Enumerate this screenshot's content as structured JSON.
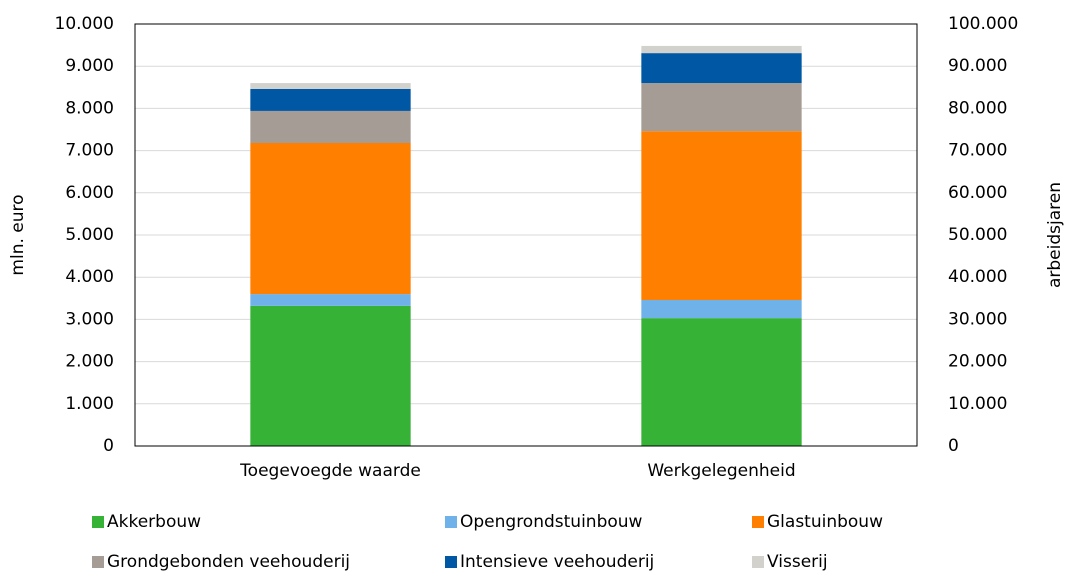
{
  "chart_data": {
    "type": "stacked-bar",
    "categories": [
      "Toegevoegde waarde",
      "Werkgelegenheid"
    ],
    "bar_axis": [
      "y",
      "y2"
    ],
    "ylabel": "mln. euro",
    "y2label": "arbeidsjaren",
    "ylim": [
      0,
      10000
    ],
    "yticks": [
      0,
      {
        "value": 1000,
        "label": "1.000"
      },
      {
        "value": 2000,
        "label": "2.000"
      },
      {
        "value": 3000,
        "label": "3.000"
      },
      {
        "value": 4000,
        "label": "4.000"
      },
      {
        "value": 5000,
        "label": "5.000"
      },
      {
        "value": 6000,
        "label": "6.000"
      },
      {
        "value": 7000,
        "label": "7.000"
      },
      {
        "value": 8000,
        "label": "8.000"
      },
      {
        "value": 9000,
        "label": "9.000"
      },
      {
        "value": 10000,
        "label": "10.000"
      }
    ],
    "y2lim": [
      0,
      100000
    ],
    "y2ticks": [
      0,
      {
        "value": 10000,
        "label": "10.000"
      },
      {
        "value": 20000,
        "label": "20.000"
      },
      {
        "value": 30000,
        "label": "30.000"
      },
      {
        "value": 40000,
        "label": "40.000"
      },
      {
        "value": 50000,
        "label": "50.000"
      },
      {
        "value": 60000,
        "label": "60.000"
      },
      {
        "value": 70000,
        "label": "70.000"
      },
      {
        "value": 80000,
        "label": "80.000"
      },
      {
        "value": 90000,
        "label": "90.000"
      },
      {
        "value": 100000,
        "label": "100.000"
      }
    ],
    "grid": true,
    "legend": "bottom",
    "series": [
      {
        "name": "Akkerbouw",
        "color": "#36b336",
        "values": [
          3320,
          30300
        ]
      },
      {
        "name": "Opengrondstuinbouw",
        "color": "#6fb2ea",
        "values": [
          280,
          4300
        ]
      },
      {
        "name": "Glastuinbouw",
        "color": "#ff7f00",
        "values": [
          3580,
          40000
        ]
      },
      {
        "name": "Grondgebonden veehouderij",
        "color": "#a59d95",
        "values": [
          760,
          11400
        ]
      },
      {
        "name": "Intensieve veehouderij",
        "color": "#0058a5",
        "values": [
          520,
          7100
        ]
      },
      {
        "name": "Visserij",
        "color": "#d3d1cc",
        "values": [
          140,
          1700
        ]
      }
    ]
  }
}
